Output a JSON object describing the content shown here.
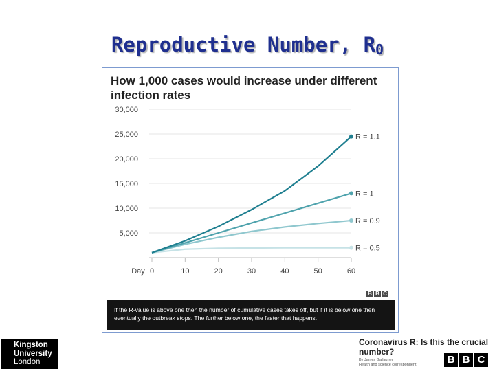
{
  "slide": {
    "title": "Reproductive Number, R",
    "title_subscript": "0"
  },
  "chart_data": {
    "type": "line",
    "title": "How 1,000 cases would increase under different infection rates",
    "xlabel": "Day",
    "ylabel": "",
    "xlim": [
      0,
      60
    ],
    "ylim": [
      0,
      30000
    ],
    "x_ticks": [
      "0",
      "10",
      "20",
      "30",
      "40",
      "50",
      "60"
    ],
    "x_tick_values": [
      0,
      10,
      20,
      30,
      40,
      50,
      60
    ],
    "y_ticks": [
      "30,000",
      "25,000",
      "20,000",
      "15,000",
      "10,000",
      "5,000"
    ],
    "y_tick_values": [
      30000,
      25000,
      20000,
      15000,
      10000,
      5000
    ],
    "grid": true,
    "x": [
      0,
      10,
      20,
      30,
      40,
      50,
      60
    ],
    "series": [
      {
        "name": "R = 1.1",
        "color": "#1f7f90",
        "values": [
          1000,
          3400,
          6300,
          9700,
          13500,
          18500,
          24500
        ]
      },
      {
        "name": "R = 1",
        "color": "#4fa3ad",
        "values": [
          1000,
          3000,
          5000,
          7000,
          9000,
          11000,
          13000
        ]
      },
      {
        "name": "R = 0.9",
        "color": "#8fc7ce",
        "values": [
          1000,
          2700,
          4100,
          5300,
          6200,
          6900,
          7500
        ]
      },
      {
        "name": "R = 0.5",
        "color": "#c6e2e6",
        "values": [
          1000,
          1700,
          1900,
          1950,
          2000,
          2000,
          2000
        ]
      }
    ],
    "source_logo": "BBC",
    "caption": "If the R-value is above one then the number of cumulative cases takes off, but if it is below one then eventually the outbreak stops. The further below one, the faster that happens."
  },
  "footer": {
    "logo_lines": [
      "Kingston",
      "University",
      "London"
    ],
    "article_title": "Coronavirus R: Is this the crucial number?",
    "article_author_line1": "By James Gallagher",
    "article_author_line2": "Health and science correspondent",
    "bbc_letters": [
      "B",
      "B",
      "C"
    ]
  }
}
